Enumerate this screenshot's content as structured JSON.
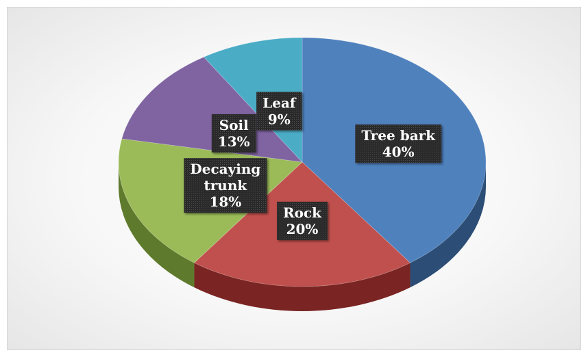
{
  "chart_data": {
    "type": "pie",
    "title": "",
    "style": "3d",
    "slices": [
      {
        "label": "Tree bark",
        "value": 40,
        "display": "40%",
        "color": "#4f81bd",
        "side_color": "#2c4d75"
      },
      {
        "label": "Rock",
        "value": 20,
        "display": "20%",
        "color": "#c0504d",
        "side_color": "#7a2523"
      },
      {
        "label": "Decaying trunk",
        "value": 18,
        "display": "18%",
        "color": "#9bbb59",
        "side_color": "#5e7a2c"
      },
      {
        "label": "Soil",
        "value": 13,
        "display": "13%",
        "color": "#8064a2",
        "side_color": "#4d3a66"
      },
      {
        "label": "Leaf",
        "value": 9,
        "display": "9%",
        "color": "#4bacc6",
        "side_color": "#276f82"
      }
    ],
    "data_labels": true,
    "legend": "none"
  }
}
